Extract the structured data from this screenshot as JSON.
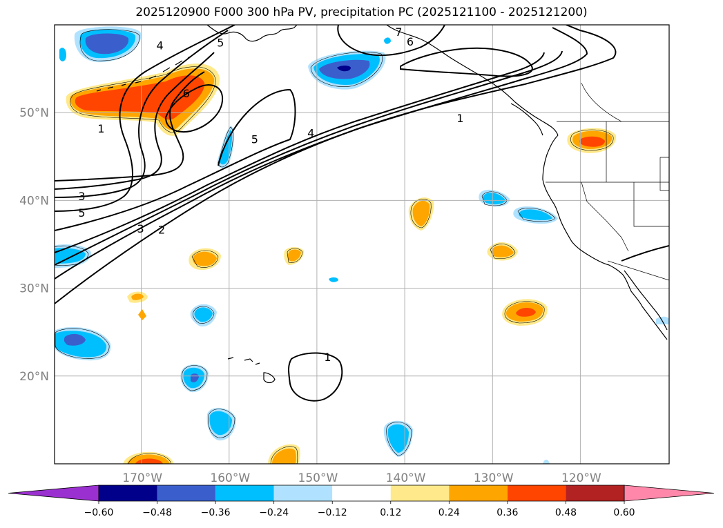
{
  "title": "2025120900 F000 300 hPa PV, precipitation PC (2025121100 - 2025121200)",
  "map": {
    "lon_range": [
      -180,
      -110
    ],
    "lat_range": [
      10,
      60
    ],
    "gridlines": true,
    "lat_ticks": [
      {
        "value": 50,
        "label": "50°N"
      },
      {
        "value": 40,
        "label": "40°N"
      },
      {
        "value": 30,
        "label": "30°N"
      },
      {
        "value": 20,
        "label": "20°N"
      }
    ],
    "lon_ticks": [
      {
        "value": -170,
        "label": "170°W"
      },
      {
        "value": -160,
        "label": "160°W"
      },
      {
        "value": -150,
        "label": "150°W"
      },
      {
        "value": -140,
        "label": "140°W"
      },
      {
        "value": -130,
        "label": "130°W"
      },
      {
        "value": -120,
        "label": "120°W"
      }
    ]
  },
  "pv_contour_labels": [
    {
      "text": "4",
      "lon": -168.0,
      "lat": 57.7
    },
    {
      "text": "6",
      "lon": -165.0,
      "lat": 52.2
    },
    {
      "text": "7",
      "lon": -140.8,
      "lat": 59.2
    },
    {
      "text": "6",
      "lon": -139.5,
      "lat": 58.1
    },
    {
      "text": "5",
      "lon": -161.1,
      "lat": 58.0
    },
    {
      "text": "1",
      "lon": -174.7,
      "lat": 48.2
    },
    {
      "text": "5",
      "lon": -157.2,
      "lat": 47.0
    },
    {
      "text": "4",
      "lon": -150.8,
      "lat": 47.7
    },
    {
      "text": "1",
      "lon": -133.8,
      "lat": 49.4
    },
    {
      "text": "3",
      "lon": -176.9,
      "lat": 40.5
    },
    {
      "text": "5",
      "lon": -176.9,
      "lat": 38.6
    },
    {
      "text": "3",
      "lon": -170.2,
      "lat": 36.8
    },
    {
      "text": "2",
      "lon": -167.8,
      "lat": 36.7
    },
    {
      "text": "1",
      "lon": -148.9,
      "lat": 22.2
    }
  ],
  "colorbar": {
    "labels": [
      "−0.60",
      "−0.48",
      "−0.36",
      "−0.24",
      "−0.12",
      "0.12",
      "0.24",
      "0.36",
      "0.48",
      "0.60"
    ],
    "colors": [
      "#9b30d0",
      "#00008b",
      "#3a5fcd",
      "#00bfff",
      "#b0e2ff",
      "#ffffff",
      "#ffe98a",
      "#ffa500",
      "#ff4500",
      "#b22222",
      "#ff88aa"
    ]
  }
}
